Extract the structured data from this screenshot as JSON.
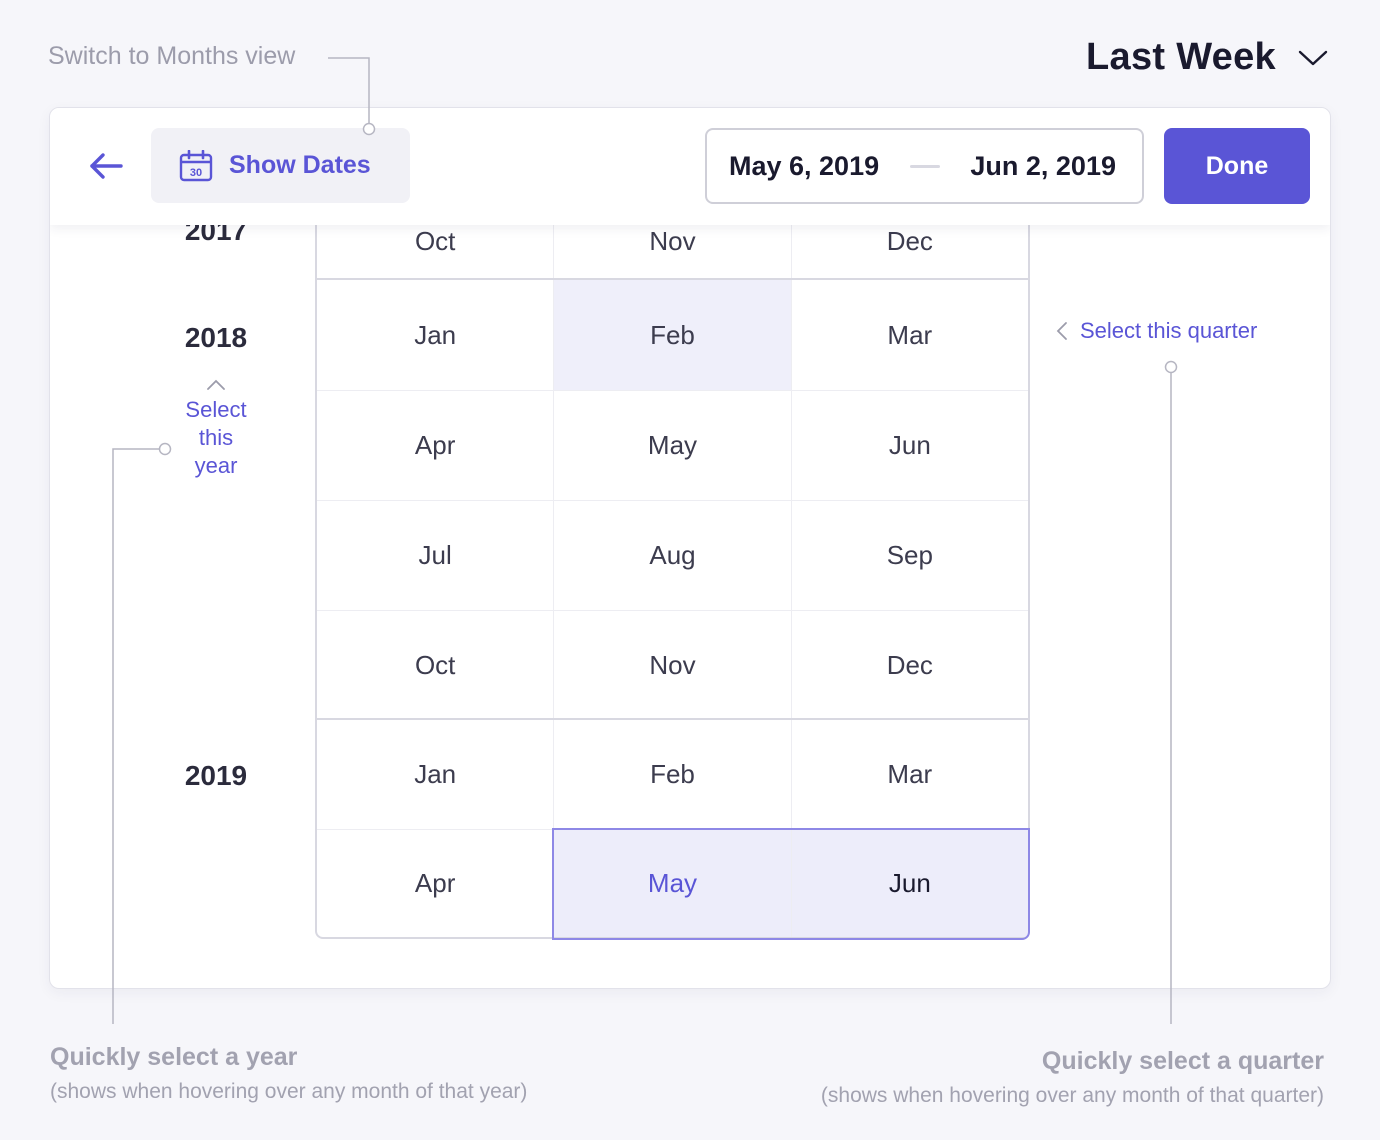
{
  "annotations": {
    "switch_view": "Switch to Months view",
    "year_title": "Quickly select a year",
    "year_sub": "(shows when hovering over any month of that year)",
    "quarter_title": "Quickly select a quarter",
    "quarter_sub": "(shows when hovering over any month of that quarter)"
  },
  "range_select": {
    "label": "Last Week",
    "icon": "chevron-down-icon"
  },
  "toolbar": {
    "back_icon": "arrow-left-icon",
    "show_dates": {
      "label": "Show Dates",
      "icon": "calendar-icon",
      "icon_day": "30"
    },
    "date_range": {
      "start": "May 6, 2019",
      "end": "Jun 2, 2019"
    },
    "done_label": "Done"
  },
  "years": [
    {
      "label": "2017",
      "rows": [
        [
          "Oct",
          "Nov",
          "Dec"
        ]
      ]
    },
    {
      "label": "2018",
      "rows": [
        [
          "Jan",
          "Feb",
          "Mar"
        ],
        [
          "Apr",
          "May",
          "Jun"
        ],
        [
          "Jul",
          "Aug",
          "Sep"
        ],
        [
          "Oct",
          "Nov",
          "Dec"
        ]
      ]
    },
    {
      "label": "2019",
      "rows": [
        [
          "Jan",
          "Feb",
          "Mar"
        ],
        [
          "Apr",
          "May",
          "Jun"
        ]
      ]
    }
  ],
  "hints": {
    "select_year_lines": [
      "Select",
      "this",
      "year"
    ],
    "select_quarter": "Select this quarter"
  },
  "colors": {
    "accent": "#5a55d6",
    "selection_bg": "#ededfa",
    "hover_bg": "#efeffa"
  }
}
